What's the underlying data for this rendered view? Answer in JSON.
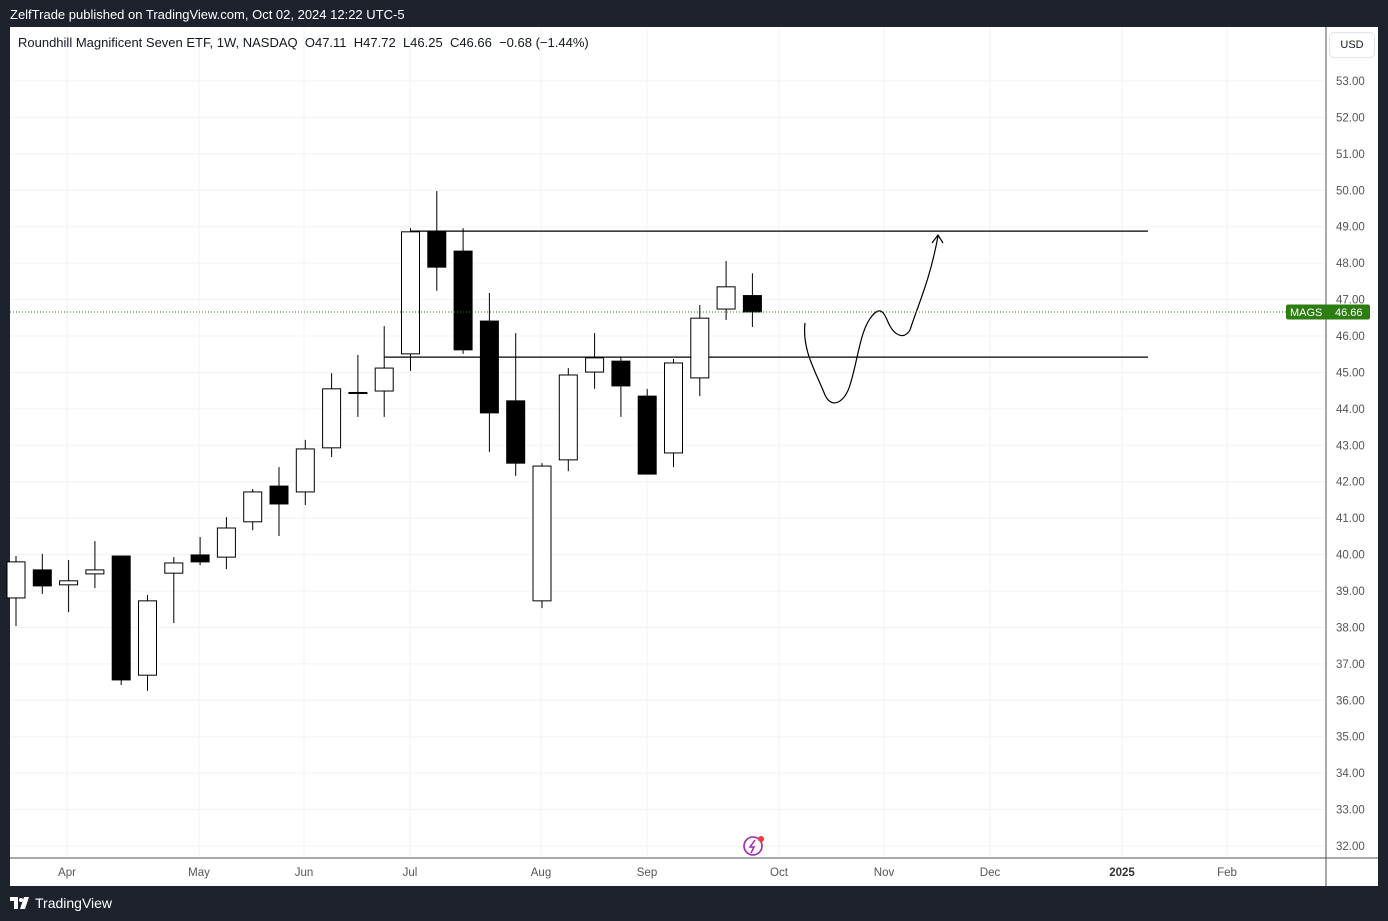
{
  "published": "ZelfTrade published on TradingView.com, Oct 02, 2024 12:22 UTC-5",
  "legend": {
    "name": "Roundhill Magnificent Seven ETF, 1W, NASDAQ",
    "o": "O47.11",
    "h": "H47.72",
    "l": "L46.25",
    "c": "C46.66",
    "change": "−0.68 (−1.44%)"
  },
  "currency": "USD",
  "brand": "TradingView",
  "price_tag": {
    "symbol": "MAGS",
    "value": "46.66",
    "color": "#2e7d12"
  },
  "chart_data": {
    "type": "candlestick",
    "interval": "1W",
    "symbol": "MAGS",
    "ylim": [
      31.7,
      54.3
    ],
    "y_ticks": [
      "53.00",
      "52.00",
      "51.00",
      "50.00",
      "49.00",
      "48.00",
      "47.00",
      "46.00",
      "45.00",
      "44.00",
      "43.00",
      "42.00",
      "41.00",
      "40.00",
      "39.00",
      "38.00",
      "37.00",
      "36.00",
      "35.00",
      "34.00",
      "33.00",
      "32.00"
    ],
    "x_ticks": [
      {
        "label": "Apr",
        "bold": false
      },
      {
        "label": "May",
        "bold": false
      },
      {
        "label": "Jun",
        "bold": false
      },
      {
        "label": "Jul",
        "bold": false
      },
      {
        "label": "Aug",
        "bold": false
      },
      {
        "label": "Sep",
        "bold": false
      },
      {
        "label": "Oct",
        "bold": false
      },
      {
        "label": "Nov",
        "bold": false
      },
      {
        "label": "Dec",
        "bold": false
      },
      {
        "label": "2025",
        "bold": true
      },
      {
        "label": "Feb",
        "bold": false
      }
    ],
    "grid": true,
    "up_color": "#ffffff",
    "down_color": "#000000",
    "candles": [
      {
        "week": "2024-03-18",
        "o": 38.81,
        "h": 39.96,
        "l": 38.04,
        "c": 39.8
      },
      {
        "week": "2024-03-25",
        "o": 39.58,
        "h": 40.02,
        "l": 38.92,
        "c": 39.14
      },
      {
        "week": "2024-04-01",
        "o": 39.17,
        "h": 39.85,
        "l": 38.42,
        "c": 39.28
      },
      {
        "week": "2024-04-08",
        "o": 39.47,
        "h": 40.37,
        "l": 39.08,
        "c": 39.58
      },
      {
        "week": "2024-04-15",
        "o": 39.96,
        "h": 39.96,
        "l": 36.42,
        "c": 36.56
      },
      {
        "week": "2024-04-22",
        "o": 36.69,
        "h": 38.89,
        "l": 36.26,
        "c": 38.73
      },
      {
        "week": "2024-04-29",
        "o": 39.49,
        "h": 39.93,
        "l": 38.12,
        "c": 39.77
      },
      {
        "week": "2024-05-06",
        "o": 39.99,
        "h": 40.48,
        "l": 39.71,
        "c": 39.8
      },
      {
        "week": "2024-05-13",
        "o": 39.93,
        "h": 41.03,
        "l": 39.6,
        "c": 40.73
      },
      {
        "week": "2024-05-20",
        "o": 40.9,
        "h": 41.8,
        "l": 40.67,
        "c": 41.72
      },
      {
        "week": "2024-05-27",
        "o": 41.88,
        "h": 42.4,
        "l": 40.51,
        "c": 41.39
      },
      {
        "week": "2024-06-03",
        "o": 41.72,
        "h": 43.15,
        "l": 41.36,
        "c": 42.9
      },
      {
        "week": "2024-06-10",
        "o": 42.93,
        "h": 44.98,
        "l": 42.68,
        "c": 44.55
      },
      {
        "week": "2024-06-17",
        "o": 44.43,
        "h": 45.48,
        "l": 43.78,
        "c": 44.45
      },
      {
        "week": "2024-06-24",
        "o": 44.49,
        "h": 46.27,
        "l": 43.78,
        "c": 45.12
      },
      {
        "week": "2024-07-01",
        "o": 45.51,
        "h": 48.96,
        "l": 45.04,
        "c": 48.86
      },
      {
        "week": "2024-07-08",
        "o": 48.88,
        "h": 49.98,
        "l": 47.24,
        "c": 47.89
      },
      {
        "week": "2024-07-15",
        "o": 48.33,
        "h": 48.96,
        "l": 45.51,
        "c": 45.62
      },
      {
        "week": "2024-07-22",
        "o": 46.41,
        "h": 47.18,
        "l": 42.82,
        "c": 43.89
      },
      {
        "week": "2024-07-29",
        "o": 44.22,
        "h": 46.08,
        "l": 42.16,
        "c": 42.51
      },
      {
        "week": "2024-08-05",
        "o": 38.73,
        "h": 42.51,
        "l": 38.53,
        "c": 42.43
      },
      {
        "week": "2024-08-12",
        "o": 42.6,
        "h": 45.12,
        "l": 42.29,
        "c": 44.93
      },
      {
        "week": "2024-08-19",
        "o": 45.01,
        "h": 46.08,
        "l": 44.55,
        "c": 45.4
      },
      {
        "week": "2024-08-26",
        "o": 45.31,
        "h": 45.42,
        "l": 43.78,
        "c": 44.63
      },
      {
        "week": "2024-09-02",
        "o": 44.35,
        "h": 44.55,
        "l": 42.21,
        "c": 42.21
      },
      {
        "week": "2024-09-09",
        "o": 42.79,
        "h": 45.37,
        "l": 42.4,
        "c": 45.26
      },
      {
        "week": "2024-09-16",
        "o": 44.85,
        "h": 46.85,
        "l": 44.35,
        "c": 46.49
      },
      {
        "week": "2024-09-23",
        "o": 46.74,
        "h": 48.06,
        "l": 46.44,
        "c": 47.35
      },
      {
        "week": "2024-09-30",
        "o": 47.11,
        "h": 47.72,
        "l": 46.25,
        "c": 46.66
      }
    ],
    "last_price": 46.66,
    "drawings": {
      "horizontal_levels": [
        {
          "price": 48.88,
          "from_week": "2024-07-01",
          "to_week": "2025-01-13"
        },
        {
          "price": 45.42,
          "from_week": "2024-06-24",
          "to_week": "2025-01-13"
        }
      ],
      "projection_path": "hand-drawn arrow: dip to ~44.1, rally to ~46.7, pullback ~46.0, up to ~48.8"
    }
  }
}
